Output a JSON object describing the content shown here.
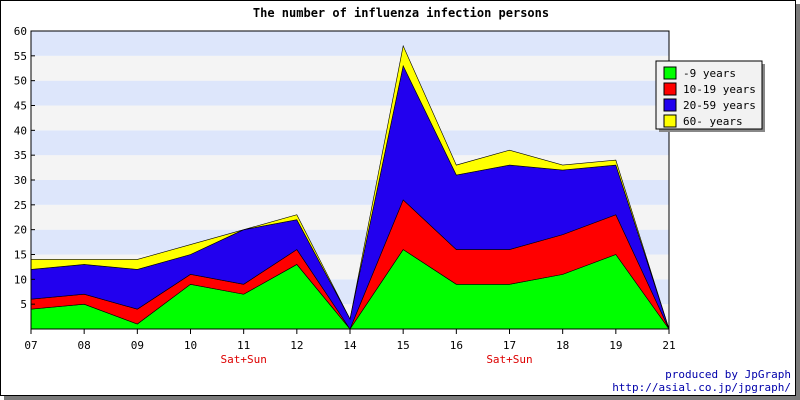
{
  "chart_data": {
    "type": "area",
    "title": "The number of influenza infection persons",
    "xlabel": "",
    "ylabel": "",
    "categories": [
      "07",
      "08",
      "09",
      "10",
      "11",
      "12",
      "14",
      "15",
      "16",
      "17",
      "18",
      "19",
      "21"
    ],
    "weekend_labels": [
      {
        "category": "11",
        "label": "Sat+Sun"
      },
      {
        "category": "17",
        "label": "Sat+Sun"
      }
    ],
    "ylim": [
      0,
      60
    ],
    "yticks": [
      5,
      10,
      15,
      20,
      25,
      30,
      35,
      40,
      45,
      50,
      55,
      60
    ],
    "stacked": true,
    "grid": true,
    "legend_position": "top-right",
    "series": [
      {
        "name": "-9 years",
        "color": "#00ff00",
        "values": [
          4,
          5,
          1,
          9,
          7,
          13,
          0,
          16,
          9,
          9,
          11,
          15,
          0
        ]
      },
      {
        "name": "10-19 years",
        "color": "#ff0000",
        "values": [
          2,
          2,
          3,
          2,
          2,
          3,
          0,
          10,
          7,
          7,
          8,
          8,
          0
        ]
      },
      {
        "name": "20-59 years",
        "color": "#2200ee",
        "values": [
          6,
          6,
          8,
          4,
          11,
          6,
          2,
          27,
          15,
          17,
          13,
          10,
          0
        ]
      },
      {
        "name": "60- years",
        "color": "#ffff00",
        "values": [
          2,
          1,
          2,
          2,
          0,
          1,
          0,
          4,
          2,
          3,
          1,
          1,
          0
        ]
      }
    ]
  },
  "credits": {
    "line1": "produced by JpGraph",
    "line2": "http://asial.co.jp/jpgraph/"
  }
}
